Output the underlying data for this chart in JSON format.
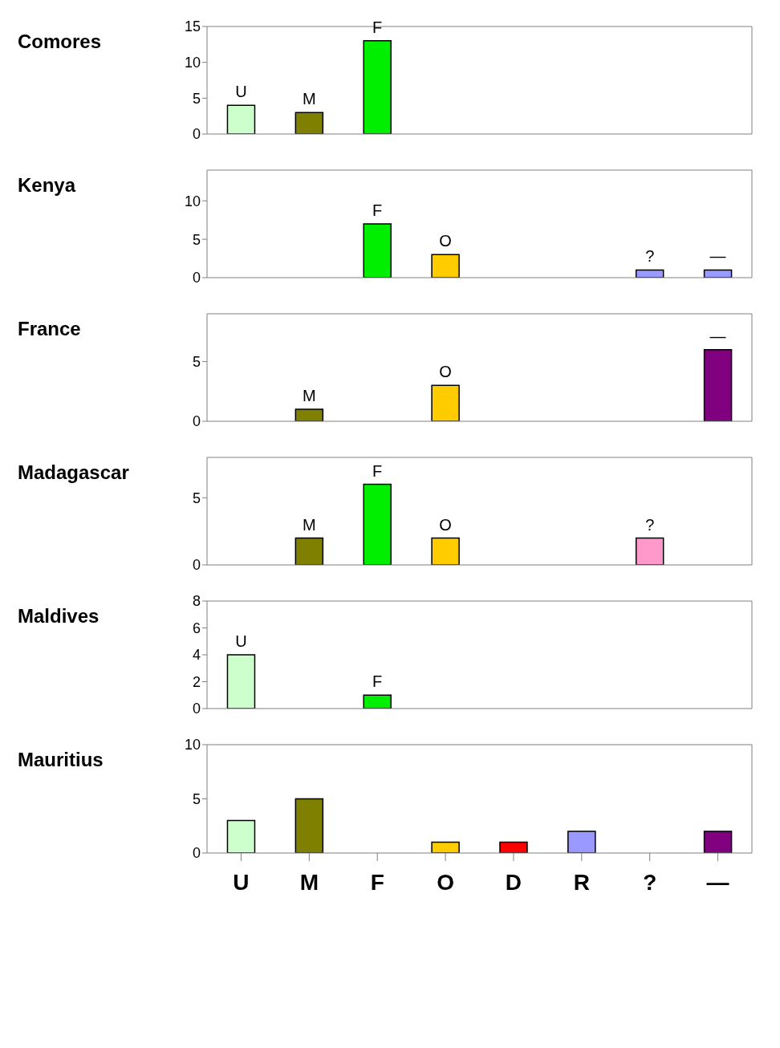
{
  "chart_data": [
    {
      "type": "bar",
      "title": "Comores",
      "categories": [
        "U",
        "M",
        "F",
        "O",
        "D",
        "R",
        "?",
        "—"
      ],
      "values": [
        4,
        3,
        13,
        null,
        null,
        null,
        null,
        null
      ],
      "colors": [
        "#ccffcc",
        "#808000",
        "#00ee00",
        null,
        null,
        null,
        null,
        null
      ],
      "ylim": [
        0,
        15
      ],
      "yticks": [
        0,
        5,
        10,
        15
      ],
      "grid": false,
      "legend": false,
      "tick_labels": "y",
      "annotations": [
        {
          "text": "U",
          "x": "U",
          "y": 4
        },
        {
          "text": "M",
          "x": "M",
          "y": 3
        },
        {
          "text": "F",
          "x": "F",
          "y": 13
        }
      ]
    },
    {
      "type": "bar",
      "title": "Kenya",
      "categories": [
        "U",
        "M",
        "F",
        "O",
        "D",
        "R",
        "?",
        "—"
      ],
      "values": [
        null,
        null,
        7,
        3,
        null,
        null,
        1,
        1
      ],
      "colors": [
        null,
        null,
        "#00ee00",
        "#ffcc00",
        null,
        null,
        "#9999ff",
        "#9999ff"
      ],
      "ylim": [
        0,
        14
      ],
      "yticks": [
        0,
        5,
        10
      ],
      "grid": false,
      "legend": false,
      "tick_labels": "y",
      "annotations": [
        {
          "text": "F",
          "x": "F",
          "y": 7
        },
        {
          "text": "O",
          "x": "O",
          "y": 3
        },
        {
          "text": "?",
          "x": "?",
          "y": 1
        },
        {
          "text": "—",
          "x": "—",
          "y": 1
        }
      ]
    },
    {
      "type": "bar",
      "title": "France",
      "categories": [
        "U",
        "M",
        "F",
        "O",
        "D",
        "R",
        "?",
        "—"
      ],
      "values": [
        null,
        1,
        null,
        3,
        null,
        null,
        null,
        6
      ],
      "colors": [
        null,
        "#808000",
        null,
        "#ffcc00",
        null,
        null,
        null,
        "#800080"
      ],
      "ylim": [
        0,
        9
      ],
      "yticks": [
        0,
        5
      ],
      "grid": false,
      "legend": false,
      "tick_labels": "y",
      "annotations": [
        {
          "text": "M",
          "x": "M",
          "y": 1
        },
        {
          "text": "O",
          "x": "O",
          "y": 3
        },
        {
          "text": "—",
          "x": "—",
          "y": 6
        }
      ]
    },
    {
      "type": "bar",
      "title": "Madagascar",
      "categories": [
        "U",
        "M",
        "F",
        "O",
        "D",
        "R",
        "?",
        "—"
      ],
      "values": [
        null,
        2,
        6,
        2,
        null,
        null,
        2,
        null
      ],
      "colors": [
        null,
        "#808000",
        "#00ee00",
        "#ffcc00",
        null,
        null,
        "#ff99cc",
        null
      ],
      "ylim": [
        0,
        8
      ],
      "yticks": [
        0,
        5
      ],
      "grid": false,
      "legend": false,
      "tick_labels": "y",
      "annotations": [
        {
          "text": "M",
          "x": "M",
          "y": 2
        },
        {
          "text": "F",
          "x": "F",
          "y": 6
        },
        {
          "text": "O",
          "x": "O",
          "y": 2
        },
        {
          "text": "?",
          "x": "?",
          "y": 2
        }
      ]
    },
    {
      "type": "bar",
      "title": "Maldives",
      "categories": [
        "U",
        "M",
        "F",
        "O",
        "D",
        "R",
        "?",
        "—"
      ],
      "values": [
        4,
        null,
        1,
        null,
        null,
        null,
        null,
        null
      ],
      "colors": [
        "#ccffcc",
        null,
        "#00ee00",
        null,
        null,
        null,
        null,
        null
      ],
      "ylim": [
        0,
        8
      ],
      "yticks": [
        0,
        2,
        4,
        6,
        8
      ],
      "grid": false,
      "legend": false,
      "tick_labels": "y",
      "annotations": [
        {
          "text": "U",
          "x": "U",
          "y": 4
        },
        {
          "text": "F",
          "x": "F",
          "y": 1
        }
      ]
    },
    {
      "type": "bar",
      "title": "Mauritius",
      "categories": [
        "U",
        "M",
        "F",
        "O",
        "D",
        "R",
        "?",
        "—"
      ],
      "values": [
        3,
        5,
        null,
        1,
        1,
        2,
        null,
        2
      ],
      "colors": [
        "#ccffcc",
        "#808000",
        null,
        "#ffcc00",
        "#ff0000",
        "#9999ff",
        null,
        "#800080"
      ],
      "ylim": [
        0,
        10
      ],
      "yticks": [
        0,
        5,
        10
      ],
      "grid": false,
      "legend": false
    }
  ]
}
